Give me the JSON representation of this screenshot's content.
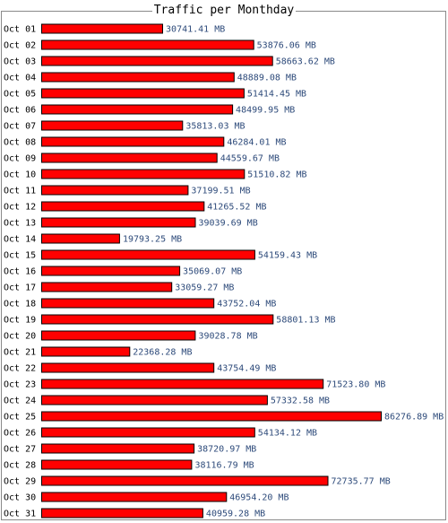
{
  "title": "Traffic per Monthday",
  "colors": {
    "bar": "#ff0000",
    "bar_outline": "#000000",
    "value_text": "#2d4a7a",
    "border": "#8a8a8a"
  },
  "chart_data": {
    "type": "bar",
    "orientation": "horizontal",
    "title": "Traffic per Monthday",
    "unit": "MB",
    "categories": [
      "Oct 01",
      "Oct 02",
      "Oct 03",
      "Oct 04",
      "Oct 05",
      "Oct 06",
      "Oct 07",
      "Oct 08",
      "Oct 09",
      "Oct 10",
      "Oct 11",
      "Oct 12",
      "Oct 13",
      "Oct 14",
      "Oct 15",
      "Oct 16",
      "Oct 17",
      "Oct 18",
      "Oct 19",
      "Oct 20",
      "Oct 21",
      "Oct 22",
      "Oct 23",
      "Oct 24",
      "Oct 25",
      "Oct 26",
      "Oct 27",
      "Oct 28",
      "Oct 29",
      "Oct 30",
      "Oct 31"
    ],
    "values": [
      30741.41,
      53876.06,
      58663.62,
      48889.08,
      51414.45,
      48499.95,
      35813.03,
      46284.01,
      44559.67,
      51510.82,
      37199.51,
      41265.52,
      39039.69,
      19793.25,
      54159.43,
      35069.07,
      33059.27,
      43752.04,
      58801.13,
      39028.78,
      22368.28,
      43754.49,
      71523.8,
      57332.58,
      86276.89,
      54134.12,
      38720.97,
      38116.79,
      72735.77,
      46954.2,
      40959.28
    ],
    "labels": [
      "30741.41 MB",
      "53876.06 MB",
      "58663.62 MB",
      "48889.08 MB",
      "51414.45 MB",
      "48499.95 MB",
      "35813.03 MB",
      "46284.01 MB",
      "44559.67 MB",
      "51510.82 MB",
      "37199.51 MB",
      "41265.52 MB",
      "39039.69 MB",
      "19793.25 MB",
      "54159.43 MB",
      "35069.07 MB",
      "33059.27 MB",
      "43752.04 MB",
      "58801.13 MB",
      "39028.78 MB",
      "22368.28 MB",
      "43754.49 MB",
      "71523.80 MB",
      "57332.58 MB",
      "86276.89 MB",
      "54134.12 MB",
      "38720.97 MB",
      "38116.79 MB",
      "72735.77 MB",
      "46954.20 MB",
      "40959.28 MB"
    ],
    "legend": "none",
    "grid": false
  }
}
